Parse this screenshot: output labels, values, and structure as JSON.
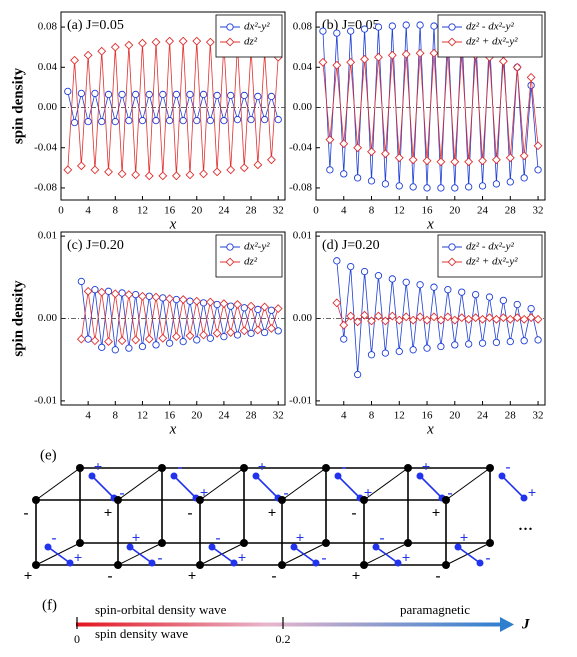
{
  "chart_data": [
    {
      "type": "line",
      "title": "(a) J=0.05",
      "ylabel": "spin density",
      "xlabel": "x",
      "legend": "upper right",
      "x": [
        1,
        2,
        3,
        4,
        5,
        6,
        7,
        8,
        9,
        10,
        11,
        12,
        13,
        14,
        15,
        16,
        17,
        18,
        19,
        20,
        21,
        22,
        23,
        24,
        25,
        26,
        27,
        28,
        29,
        30,
        31,
        32
      ],
      "xlim": [
        0,
        33
      ],
      "xticks": [
        0,
        4,
        8,
        12,
        16,
        20,
        24,
        28,
        32
      ],
      "ylim": [
        -0.092,
        0.095
      ],
      "yticks": [
        -0.08,
        -0.04,
        {
          "value": 0,
          "label": "0.00"
        },
        0.04,
        0.08
      ],
      "series": [
        {
          "name": "dx²-y²",
          "color": "#1f3fd6",
          "marker": "circle",
          "values": [
            0.016,
            -0.015,
            0.014,
            -0.014,
            0.014,
            -0.014,
            0.013,
            -0.014,
            0.013,
            -0.013,
            0.013,
            -0.013,
            0.013,
            -0.013,
            0.013,
            -0.013,
            0.013,
            -0.013,
            0.013,
            -0.013,
            0.013,
            -0.013,
            0.012,
            -0.013,
            0.012,
            -0.012,
            0.012,
            -0.012,
            0.011,
            -0.012,
            0.011,
            -0.012
          ]
        },
        {
          "name": "dz²",
          "color": "#e03030",
          "marker": "diamond",
          "values": [
            -0.062,
            0.047,
            -0.058,
            0.052,
            -0.062,
            0.056,
            -0.064,
            0.06,
            -0.066,
            0.062,
            -0.067,
            0.064,
            -0.068,
            0.065,
            -0.068,
            0.066,
            -0.068,
            0.066,
            -0.067,
            0.066,
            -0.066,
            0.065,
            -0.064,
            0.064,
            -0.062,
            0.062,
            -0.06,
            0.058,
            -0.057,
            0.055,
            -0.052,
            0.05
          ]
        }
      ]
    },
    {
      "type": "line",
      "title": "(b) J=0.05",
      "xlabel": "x",
      "legend": "upper right",
      "x": [
        1,
        2,
        3,
        4,
        5,
        6,
        7,
        8,
        9,
        10,
        11,
        12,
        13,
        14,
        15,
        16,
        17,
        18,
        19,
        20,
        21,
        22,
        23,
        24,
        25,
        26,
        27,
        28,
        29,
        30,
        31,
        32
      ],
      "xlim": [
        0,
        33
      ],
      "xticks": [
        0,
        4,
        8,
        12,
        16,
        20,
        24,
        28,
        32
      ],
      "ylim": [
        -0.092,
        0.095
      ],
      "yticks": [
        -0.08,
        -0.04,
        {
          "value": 0,
          "label": "0.00"
        },
        0.04,
        0.08
      ],
      "series": [
        {
          "name": "dz² - dx²-y²",
          "color": "#1f3fd6",
          "marker": "circle",
          "values": [
            0.076,
            -0.062,
            0.074,
            -0.066,
            0.076,
            -0.07,
            0.078,
            -0.073,
            0.08,
            -0.076,
            0.081,
            -0.078,
            0.082,
            -0.079,
            0.082,
            -0.08,
            0.081,
            -0.08,
            0.08,
            -0.08,
            0.078,
            -0.079,
            0.075,
            -0.078,
            0.07,
            -0.076,
            0.062,
            -0.074,
            0.04,
            -0.07,
            0.022,
            -0.062
          ]
        },
        {
          "name": "dz² + dx²-y²",
          "color": "#e03030",
          "marker": "diamond",
          "values": [
            0.045,
            -0.032,
            0.042,
            -0.036,
            0.045,
            -0.04,
            0.048,
            -0.044,
            0.05,
            -0.046,
            0.052,
            -0.05,
            0.053,
            -0.052,
            0.054,
            -0.053,
            0.054,
            -0.054,
            0.054,
            -0.054,
            0.053,
            -0.054,
            0.052,
            -0.053,
            0.05,
            -0.052,
            0.046,
            -0.05,
            0.04,
            -0.048,
            0.03,
            -0.038
          ]
        }
      ]
    },
    {
      "type": "line",
      "title": "(c) J=0.20",
      "ylabel": "spin density",
      "xlabel": "x",
      "legend": "upper right",
      "x": [
        3,
        4,
        5,
        6,
        7,
        8,
        9,
        10,
        11,
        12,
        13,
        14,
        15,
        16,
        17,
        18,
        19,
        20,
        21,
        22,
        23,
        24,
        25,
        26,
        27,
        28,
        29,
        30,
        31,
        32
      ],
      "xlim": [
        0,
        33
      ],
      "xticks": [
        4,
        8,
        12,
        16,
        20,
        24,
        28,
        32
      ],
      "ylim": [
        -0.0105,
        0.0105
      ],
      "yticks": [
        -0.01,
        {
          "value": 0,
          "label": "0.00"
        },
        0.01
      ],
      "series": [
        {
          "name": "dx²-y²",
          "color": "#1f3fd6",
          "marker": "circle",
          "values": [
            0.0045,
            -0.0025,
            0.0035,
            -0.0035,
            0.0033,
            -0.0038,
            0.0031,
            -0.0036,
            0.0029,
            -0.0034,
            0.0027,
            -0.0032,
            0.0025,
            -0.003,
            0.0023,
            -0.0028,
            0.0021,
            -0.0026,
            0.0019,
            -0.0024,
            0.0017,
            -0.0022,
            0.0015,
            -0.002,
            0.0013,
            -0.0018,
            0.0011,
            -0.0017,
            0.001,
            -0.0015
          ]
        },
        {
          "name": "dz²",
          "color": "#e03030",
          "marker": "diamond",
          "values": [
            -0.0025,
            0.0033,
            -0.0027,
            0.0032,
            -0.0028,
            0.003,
            -0.0027,
            0.0029,
            -0.0026,
            0.0027,
            -0.0025,
            0.0026,
            -0.0024,
            0.0024,
            -0.0022,
            0.0023,
            -0.0021,
            0.0021,
            -0.002,
            0.002,
            -0.0018,
            0.0018,
            -0.0017,
            0.0017,
            -0.0015,
            0.0015,
            -0.0014,
            0.0014,
            -0.0012,
            0.0012
          ]
        }
      ]
    },
    {
      "type": "line",
      "title": "(d) J=0.20",
      "xlabel": "x",
      "legend": "upper right",
      "x": [
        3,
        4,
        5,
        6,
        7,
        8,
        9,
        10,
        11,
        12,
        13,
        14,
        15,
        16,
        17,
        18,
        19,
        20,
        21,
        22,
        23,
        24,
        25,
        26,
        27,
        28,
        29,
        30,
        31,
        32
      ],
      "xlim": [
        0,
        33
      ],
      "xticks": [
        4,
        8,
        12,
        16,
        20,
        24,
        28,
        32
      ],
      "ylim": [
        -0.0105,
        0.0105
      ],
      "yticks": [
        -0.01,
        {
          "value": 0,
          "label": "0.00"
        },
        0.01
      ],
      "series": [
        {
          "name": "dz² - dx²-y²",
          "color": "#1f3fd6",
          "marker": "circle",
          "values": [
            0.007,
            -0.0025,
            0.0063,
            -0.0068,
            0.0057,
            -0.0044,
            0.0052,
            -0.0042,
            0.0048,
            -0.004,
            0.0044,
            -0.0038,
            0.0041,
            -0.0036,
            0.0038,
            -0.0034,
            0.0035,
            -0.0032,
            0.0032,
            -0.0031,
            0.0029,
            -0.003,
            0.0026,
            -0.0029,
            0.0022,
            -0.0028,
            0.0017,
            -0.0027,
            0.0012,
            -0.0026
          ]
        },
        {
          "name": "dz² + dx²-y²",
          "color": "#e03030",
          "marker": "diamond",
          "values": [
            0.0019,
            -0.0008,
            0.0003,
            -0.0004,
            0.0004,
            -0.0003,
            0.0003,
            -0.0003,
            0.0003,
            -0.0002,
            0.0002,
            -0.0002,
            0.0002,
            -0.0002,
            0.0002,
            -0.0002,
            0.0002,
            -0.0002,
            0.0001,
            -0.0001,
            0.0001,
            -0.0001,
            0.0001,
            -0.0001,
            0.0001,
            -0.0001,
            0.0001,
            -0.0001,
            0.0001,
            -0.0001
          ]
        }
      ]
    }
  ],
  "diagram": {
    "label": "(e)",
    "ellipsis": "···",
    "signs": [
      "+",
      "-",
      "-",
      "+",
      "-",
      "+",
      "-",
      "+",
      "+",
      "-",
      "+",
      "-",
      "+",
      "-",
      "-",
      "+",
      "-",
      "+",
      "-",
      "+",
      "+",
      "-",
      "+",
      "-",
      "+",
      "-",
      "-",
      "+",
      "-",
      "+",
      "-",
      "+",
      "+",
      "-",
      "+",
      "-"
    ]
  },
  "phase": {
    "label": "(f)",
    "upper_left": "spin-orbital density wave",
    "lower_left": "spin  density wave",
    "right": "paramagnetic",
    "axis": "J",
    "ticks": [
      0,
      0.2
    ]
  }
}
